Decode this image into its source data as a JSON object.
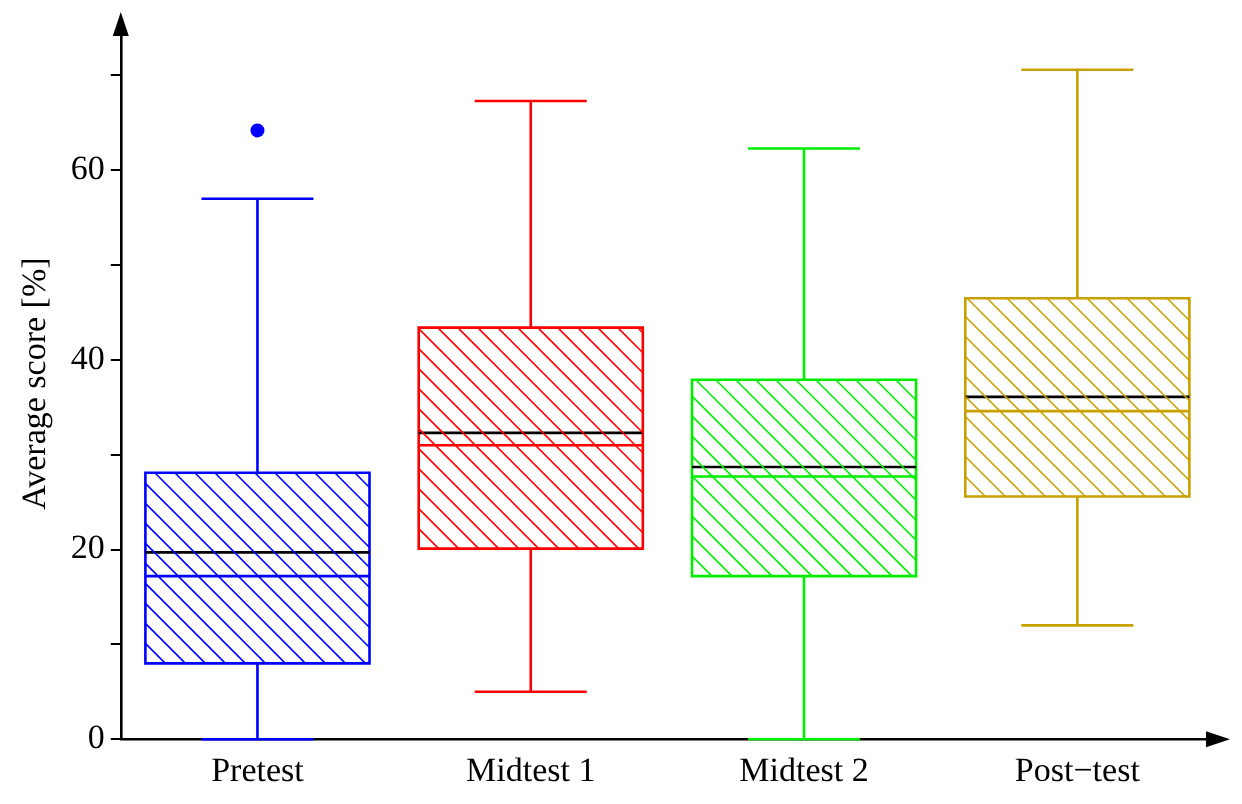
{
  "chart_data": {
    "type": "box",
    "ylabel": "Average score [%]",
    "categories": [
      "Pretest",
      "Midtest 1",
      "Midtest 2",
      "Post−test"
    ],
    "colors": [
      "#0000ff",
      "#ff0000",
      "#00ee00",
      "#c8a000"
    ],
    "boxes": [
      {
        "low": 0,
        "q1": 8,
        "median": 17.2,
        "q3": 28.1,
        "high": 57,
        "mean": 19.7,
        "outliers": [
          64.2
        ]
      },
      {
        "low": 5,
        "q1": 20.1,
        "median": 31,
        "q3": 43.4,
        "high": 67.3,
        "mean": 32.3
      },
      {
        "low": 0,
        "q1": 17.2,
        "median": 27.7,
        "q3": 37.9,
        "high": 62.3,
        "mean": 28.7
      },
      {
        "low": 12,
        "q1": 25.6,
        "median": 34.6,
        "q3": 46.5,
        "high": 70.6,
        "mean": 36.1
      }
    ],
    "ylim": [
      0,
      75
    ],
    "yticks": [
      0,
      {
        "value": 10,
        "label": null
      },
      20,
      {
        "value": 30,
        "label": null
      },
      40,
      {
        "value": 50,
        "label": null
      },
      60,
      {
        "value": 70,
        "label": null
      }
    ],
    "grid": false,
    "legend": false,
    "marker": "circle"
  }
}
